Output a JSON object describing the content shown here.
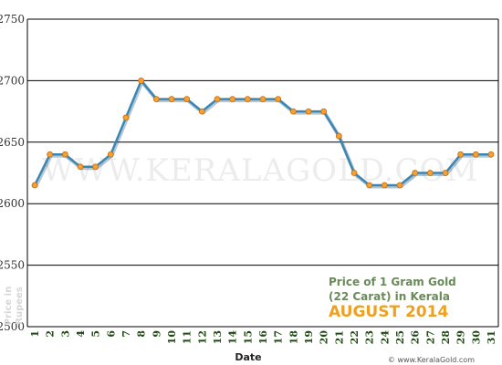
{
  "chart_data": {
    "type": "line",
    "title": [
      "Price of 1 Gram Gold",
      "(22 Carat) in Kerala"
    ],
    "subtitle": "AUGUST 2014",
    "xlabel": "Date",
    "ylabel": [
      "Price in",
      "Rupees"
    ],
    "ylim": [
      2500,
      2750
    ],
    "yticks": [
      "2500",
      "2550",
      "2600",
      "2650",
      "2700",
      "2750"
    ],
    "grid": true,
    "x": [
      "1",
      "2",
      "3",
      "4",
      "5",
      "6",
      "7",
      "8",
      "9",
      "10",
      "11",
      "12",
      "13",
      "14",
      "15",
      "16",
      "17",
      "18",
      "19",
      "20",
      "21",
      "22",
      "23",
      "24",
      "25",
      "26",
      "27",
      "28",
      "29",
      "30",
      "31"
    ],
    "series": [
      {
        "values": [
          2615,
          2640,
          2640,
          2630,
          2630,
          2640,
          2670,
          2700,
          2685,
          2685,
          2685,
          2675,
          2685,
          2685,
          2685,
          2685,
          2685,
          2675,
          2675,
          2675,
          2655,
          2625,
          2615,
          2615,
          2615,
          2625,
          2625,
          2625,
          2640,
          2640,
          2640
        ]
      }
    ],
    "colors": {
      "line": "#3a86b4",
      "line_shadow": "#2a5f80",
      "marker": "#f5a030",
      "marker_edge": "#c06a10",
      "grid": "#000000"
    }
  },
  "watermark": "WWW.KERALAGOLD.COM",
  "credit": "© www.KeralaGold.com"
}
